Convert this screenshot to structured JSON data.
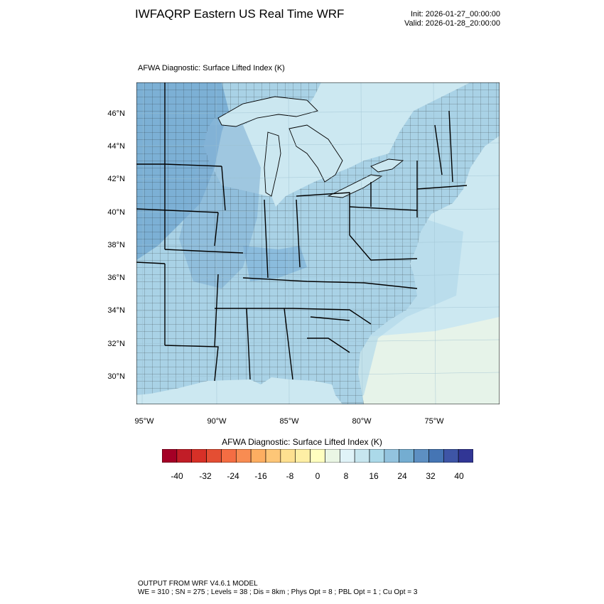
{
  "header": {
    "title": "IWFAQRP Eastern US Real Time WRF",
    "init": "Init: 2026-01-27_00:00:00",
    "valid": "Valid: 2026-01-28_20:00:00"
  },
  "panel": {
    "title": "AFWA Diagnostic: Surface Lifted Index   (K)"
  },
  "axes": {
    "lat_labels": [
      "46°N",
      "44°N",
      "42°N",
      "40°N",
      "38°N",
      "36°N",
      "34°N",
      "32°N",
      "30°N"
    ],
    "lon_labels": [
      "95°W",
      "90°W",
      "85°W",
      "80°W",
      "75°W"
    ]
  },
  "colorbar": {
    "title": "AFWA Diagnostic: Surface Lifted Index  (K)",
    "colors": [
      "#a50026",
      "#c11d27",
      "#d73027",
      "#e44e33",
      "#f46d43",
      "#f88c52",
      "#fdae61",
      "#fdc677",
      "#fee090",
      "#feefa5",
      "#ffffbf",
      "#eaf6e4",
      "#e0f3f8",
      "#c7e6ef",
      "#abd9e9",
      "#93c3de",
      "#74add1",
      "#5d8fc2",
      "#4575b4",
      "#3e55a6",
      "#313695"
    ],
    "ticks": [
      "-40",
      "-32",
      "-24",
      "-16",
      "-8",
      "0",
      "8",
      "16",
      "24",
      "32",
      "40"
    ]
  },
  "footer": {
    "line1": "OUTPUT FROM WRF V4.6.1 MODEL",
    "line2": "WE = 310 ; SN = 275 ; Levels = 38 ; Dis = 8km ; Phys Opt = 8 ; PBL Opt = 1 ; Cu Opt = 3"
  },
  "map_colors": {
    "land_base": "#a9d2e6",
    "ocean": "#cce8f1",
    "lake": "#cbe7f0",
    "warm_ocean": "#e6f3e9",
    "plains_dark": "#6ea4cf",
    "ohio_valley": "#8fbfdd"
  }
}
